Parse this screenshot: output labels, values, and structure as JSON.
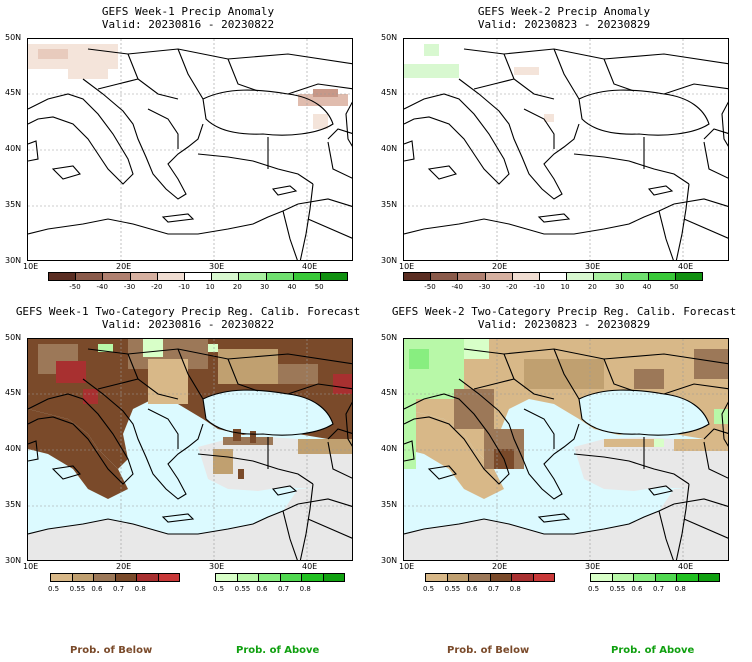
{
  "panels": [
    {
      "title": "GEFS Week-1 Precip Anomaly",
      "valid": "Valid: 20230816 - 20230822"
    },
    {
      "title": "GEFS Week-2 Precip Anomaly",
      "valid": "Valid: 20230823 - 20230829"
    },
    {
      "title": "GEFS Week-1 Two-Category Precip Reg. Calib. Forecast",
      "valid": "Valid: 20230816 - 20230822"
    },
    {
      "title": "GEFS Week-2 Two-Category Precip Reg. Calib. Forecast",
      "valid": "Valid: 20230823 - 20230829"
    }
  ],
  "lat_ticks": [
    "50N",
    "45N",
    "40N",
    "35N",
    "30N"
  ],
  "lon_ticks": [
    "10E",
    "20E",
    "30E",
    "40E"
  ],
  "anomaly_scale": {
    "labels": [
      "-50",
      "-40",
      "-30",
      "-20",
      "-10",
      "10",
      "20",
      "30",
      "40",
      "50"
    ],
    "colors": [
      "#5a2d22",
      "#8a5a4a",
      "#b08070",
      "#d6b0a0",
      "#f0ddd2",
      "#ffffff",
      "#d8f8d0",
      "#a8f0a0",
      "#70e070",
      "#38c838",
      "#109010"
    ]
  },
  "below_scale": {
    "labels": [
      "0.5",
      "0.55",
      "0.6",
      "0.7",
      "0.8"
    ],
    "colors": [
      "#d8b888",
      "#c0a070",
      "#9c7858",
      "#7a4a2a",
      "#a83030",
      "#c83838"
    ]
  },
  "above_scale": {
    "labels": [
      "0.5",
      "0.55",
      "0.6",
      "0.7",
      "0.8"
    ],
    "colors": [
      "#d8ffc8",
      "#b8f8a8",
      "#88ee80",
      "#50d850",
      "#20c020",
      "#10a010"
    ]
  },
  "footer": {
    "below_label": "Prob. of Below",
    "above_label": "Prob. of Above",
    "below_color": "#7a4a2a",
    "above_color": "#10a010"
  },
  "colors": {
    "sea": "#dcfaff",
    "no_signal": "#e8e8e8",
    "coast": "#000000"
  }
}
